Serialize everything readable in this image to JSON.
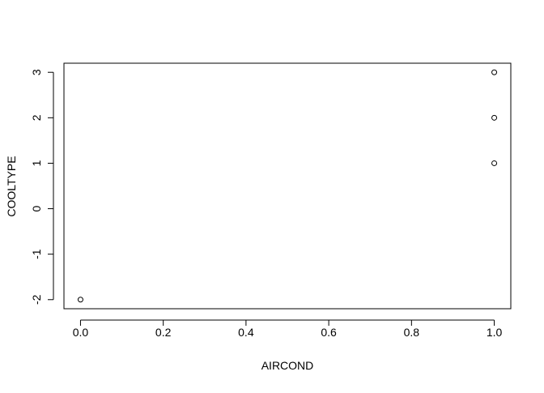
{
  "chart_data": {
    "type": "scatter",
    "xlabel": "AIRCOND",
    "ylabel": "COOLTYPE",
    "xlim": [
      -0.04,
      1.04
    ],
    "ylim": [
      -2.2,
      3.2
    ],
    "x_ticks": [
      0.0,
      0.2,
      0.4,
      0.6,
      0.8,
      1.0
    ],
    "x_tick_labels": [
      "0.0",
      "0.2",
      "0.4",
      "0.6",
      "0.8",
      "1.0"
    ],
    "y_ticks": [
      -2,
      -1,
      0,
      1,
      2,
      3
    ],
    "y_tick_labels": [
      "-2",
      "-1",
      "0",
      "1",
      "2",
      "3"
    ],
    "points": [
      {
        "x": 0.0,
        "y": -2
      },
      {
        "x": 1.0,
        "y": 1
      },
      {
        "x": 1.0,
        "y": 2
      },
      {
        "x": 1.0,
        "y": 3
      }
    ],
    "marker": "open-circle",
    "grid": false,
    "legend": "none",
    "colors": {
      "background": "#ffffff",
      "foreground": "#000000"
    }
  }
}
